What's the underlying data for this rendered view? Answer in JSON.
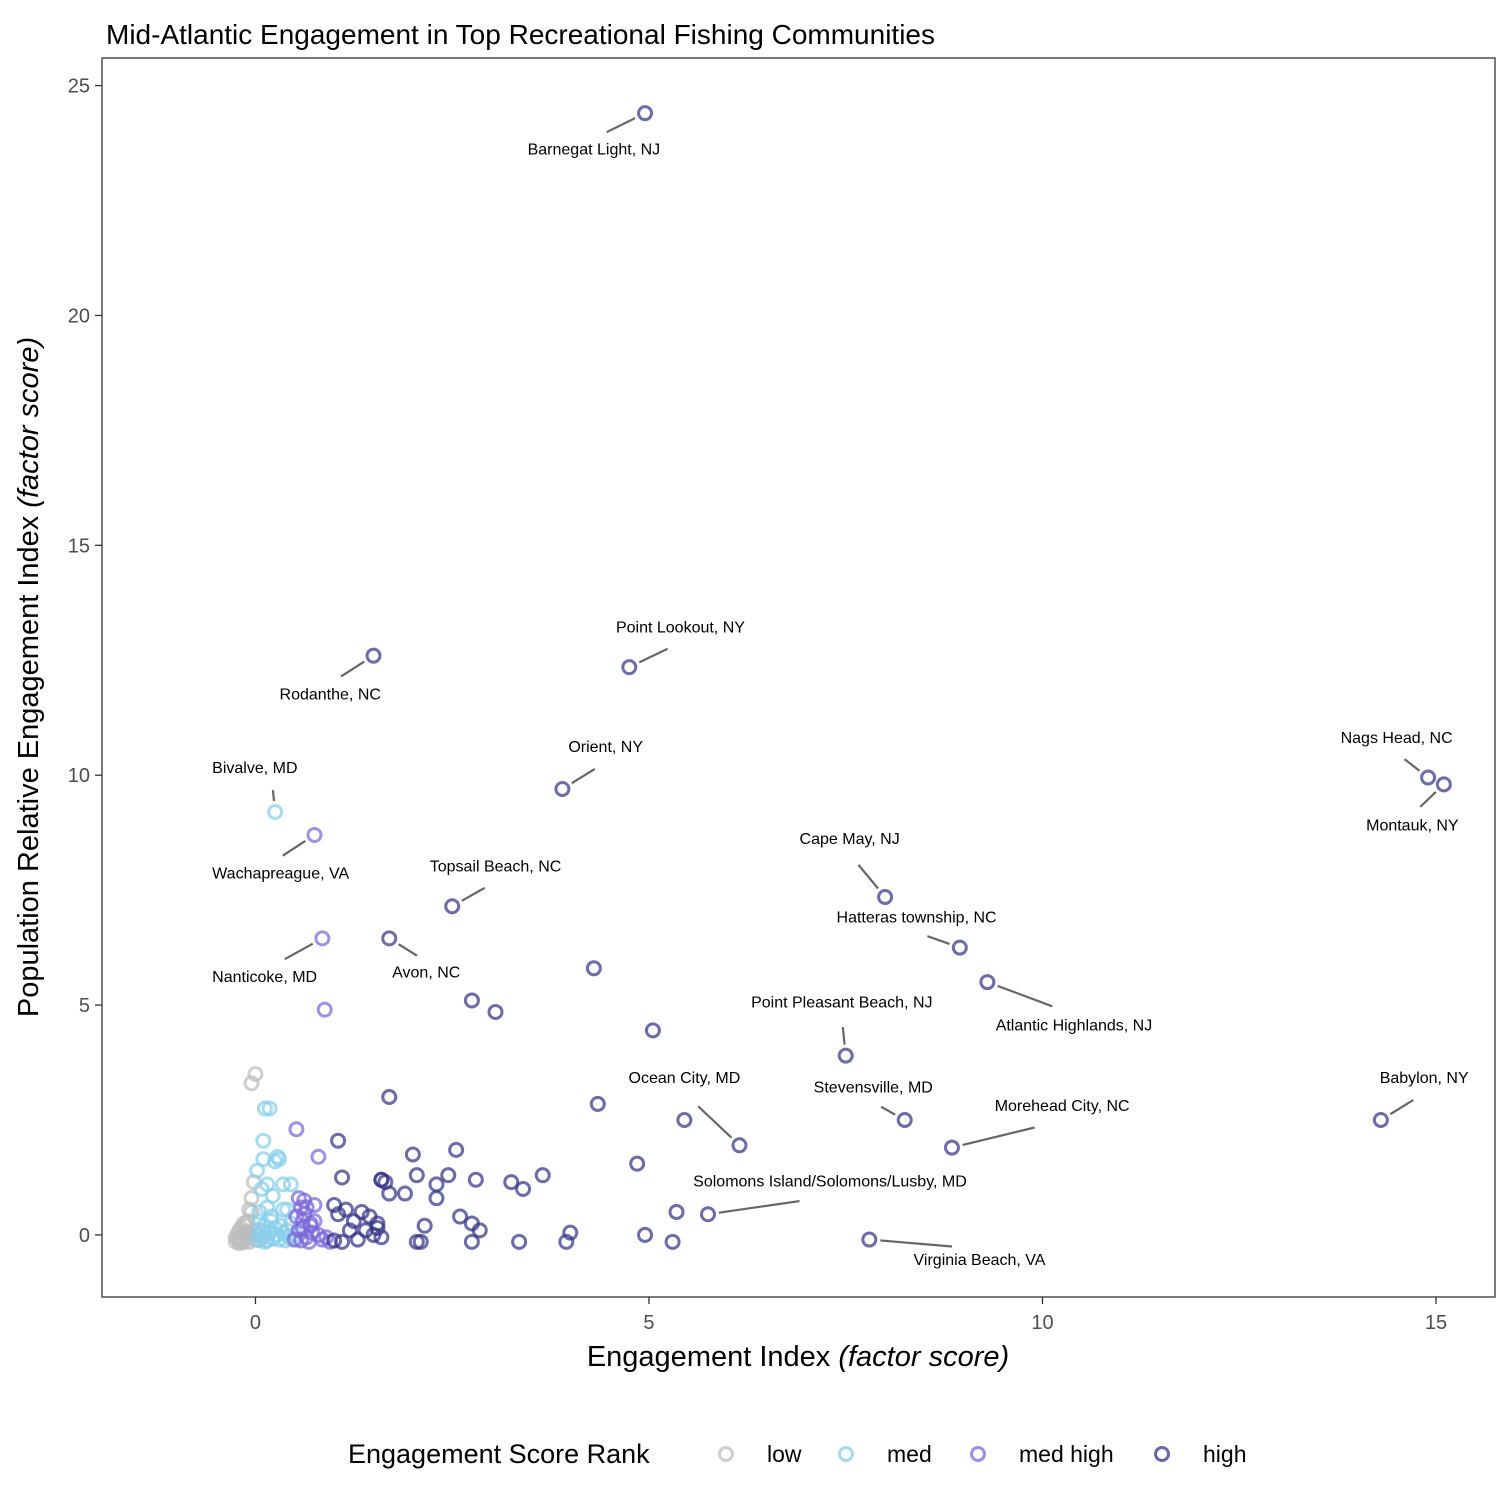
{
  "chart_data": {
    "type": "scatter",
    "title": "Mid-Atlantic Engagement in Top Recreational Fishing Communities",
    "xlabel_main": "Engagement Index ",
    "xlabel_italic": "(factor score)",
    "ylabel_main": "Population Relative Engagement Index ",
    "ylabel_italic": "(factor score)",
    "xlim": [
      -1.95,
      15.75
    ],
    "ylim": [
      -1.35,
      25.6
    ],
    "x_ticks": [
      0,
      5,
      10,
      15
    ],
    "y_ticks": [
      0,
      5,
      10,
      15,
      20,
      25
    ],
    "grid": false,
    "legend": {
      "title": "Engagement Score Rank",
      "position": "bottom",
      "entries": [
        {
          "name": "low",
          "color": "#bdbdbd"
        },
        {
          "name": "med",
          "color": "#87ceeb"
        },
        {
          "name": "med high",
          "color": "#7b68d8"
        },
        {
          "name": "high",
          "color": "#333388"
        }
      ]
    },
    "series": [
      {
        "name": "low",
        "color": "#bdbdbd",
        "points": [
          [
            -0.25,
            -0.15
          ],
          [
            -0.22,
            -0.1
          ],
          [
            -0.2,
            -0.05
          ],
          [
            -0.18,
            -0.12
          ],
          [
            -0.15,
            0.0
          ],
          [
            -0.12,
            -0.08
          ],
          [
            -0.1,
            0.05
          ],
          [
            -0.08,
            -0.15
          ],
          [
            -0.05,
            -0.02
          ],
          [
            -0.02,
            0.08
          ],
          [
            0.0,
            -0.1
          ],
          [
            0.02,
            0.0
          ],
          [
            -0.2,
            0.1
          ],
          [
            -0.15,
            0.25
          ],
          [
            -0.18,
            0.15
          ],
          [
            -0.1,
            0.3
          ],
          [
            -0.05,
            0.5
          ],
          [
            -0.12,
            0.2
          ],
          [
            -0.08,
            0.55
          ],
          [
            -0.2,
            -0.18
          ],
          [
            -0.25,
            -0.05
          ],
          [
            -0.22,
            0.05
          ],
          [
            -0.05,
            0.8
          ],
          [
            -0.02,
            1.15
          ],
          [
            -0.05,
            3.3
          ],
          [
            0.0,
            3.5
          ],
          [
            -0.15,
            -0.15
          ],
          [
            -0.1,
            -0.05
          ],
          [
            0.05,
            -0.12
          ],
          [
            0.03,
            0.12
          ],
          [
            -0.17,
            0.02
          ],
          [
            -0.13,
            -0.03
          ]
        ]
      },
      {
        "name": "med",
        "color": "#87ceeb",
        "points": [
          [
            0.02,
            -0.1
          ],
          [
            0.05,
            0.0
          ],
          [
            0.08,
            0.1
          ],
          [
            0.1,
            -0.05
          ],
          [
            0.12,
            0.2
          ],
          [
            0.15,
            -0.12
          ],
          [
            0.18,
            0.05
          ],
          [
            0.2,
            0.3
          ],
          [
            0.22,
            -0.08
          ],
          [
            0.25,
            0.15
          ],
          [
            0.28,
            0.0
          ],
          [
            0.3,
            -0.1
          ],
          [
            0.32,
            0.2
          ],
          [
            0.35,
            0.05
          ],
          [
            0.38,
            -0.12
          ],
          [
            0.4,
            0.1
          ],
          [
            0.42,
            -0.05
          ],
          [
            0.45,
            0.25
          ],
          [
            0.48,
            -0.1
          ],
          [
            0.5,
            0.0
          ],
          [
            0.05,
            0.5
          ],
          [
            0.08,
            1.0
          ],
          [
            0.15,
            0.6
          ],
          [
            0.2,
            0.4
          ],
          [
            0.02,
            1.4
          ],
          [
            0.1,
            1.65
          ],
          [
            0.15,
            1.1
          ],
          [
            0.25,
            1.6
          ],
          [
            0.3,
            1.65
          ],
          [
            0.35,
            1.1
          ],
          [
            0.1,
            2.05
          ],
          [
            0.12,
            2.75
          ],
          [
            0.18,
            2.75
          ],
          [
            0.22,
            0.85
          ],
          [
            0.35,
            0.55
          ],
          [
            0.28,
            1.7
          ],
          [
            0.45,
            1.1
          ],
          [
            0.4,
            0.55
          ],
          [
            0.05,
            0.3
          ],
          [
            0.12,
            -0.15
          ],
          [
            0.25,
            9.2
          ]
        ]
      },
      {
        "name": "med high",
        "color": "#7b68d8",
        "points": [
          [
            0.5,
            -0.1
          ],
          [
            0.55,
            0.1
          ],
          [
            0.6,
            0.3
          ],
          [
            0.65,
            -0.05
          ],
          [
            0.7,
            0.2
          ],
          [
            0.52,
            0.4
          ],
          [
            0.58,
            0.6
          ],
          [
            0.62,
            0.75
          ],
          [
            0.68,
            -0.15
          ],
          [
            0.72,
            0.05
          ],
          [
            0.75,
            0.3
          ],
          [
            0.8,
            0.0
          ],
          [
            0.85,
            -0.1
          ],
          [
            0.9,
            -0.05
          ],
          [
            0.95,
            -0.15
          ],
          [
            0.55,
            0.8
          ],
          [
            0.6,
            0.15
          ],
          [
            0.65,
            0.6
          ],
          [
            0.75,
            0.65
          ],
          [
            0.52,
            2.3
          ],
          [
            0.8,
            1.7
          ],
          [
            0.7,
            0.25
          ],
          [
            0.58,
            -0.12
          ],
          [
            0.62,
            0.45
          ],
          [
            0.75,
            8.7
          ],
          [
            0.85,
            6.45
          ],
          [
            0.88,
            4.9
          ]
        ]
      },
      {
        "name": "high",
        "color": "#333388",
        "points": [
          [
            1.0,
            0.65
          ],
          [
            1.05,
            0.45
          ],
          [
            1.1,
            -0.15
          ],
          [
            1.15,
            0.55
          ],
          [
            1.2,
            0.1
          ],
          [
            1.25,
            0.3
          ],
          [
            1.3,
            -0.1
          ],
          [
            1.35,
            0.5
          ],
          [
            1.4,
            0.1
          ],
          [
            1.45,
            0.4
          ],
          [
            1.5,
            0.0
          ],
          [
            1.55,
            0.25
          ],
          [
            1.6,
            -0.05
          ],
          [
            1.6,
            1.2
          ],
          [
            1.65,
            1.15
          ],
          [
            1.7,
            0.9
          ],
          [
            1.0,
            -0.12
          ],
          [
            1.1,
            1.25
          ],
          [
            1.05,
            2.05
          ],
          [
            1.55,
            0.15
          ],
          [
            1.6,
            1.2
          ],
          [
            1.9,
            0.9
          ],
          [
            2.0,
            1.75
          ],
          [
            2.05,
            1.3
          ],
          [
            2.05,
            -0.15
          ],
          [
            2.1,
            -0.15
          ],
          [
            2.15,
            0.2
          ],
          [
            2.3,
            1.1
          ],
          [
            2.3,
            0.8
          ],
          [
            2.45,
            1.3
          ],
          [
            2.55,
            1.85
          ],
          [
            2.6,
            0.4
          ],
          [
            2.75,
            0.25
          ],
          [
            2.75,
            -0.15
          ],
          [
            2.8,
            1.2
          ],
          [
            2.85,
            0.1
          ],
          [
            3.25,
            1.15
          ],
          [
            3.35,
            -0.15
          ],
          [
            3.4,
            1.0
          ],
          [
            3.65,
            1.3
          ],
          [
            3.95,
            -0.15
          ],
          [
            4.0,
            0.05
          ],
          [
            4.35,
            2.85
          ],
          [
            4.85,
            1.55
          ],
          [
            4.95,
            0.0
          ],
          [
            5.3,
            -0.15
          ],
          [
            5.35,
            0.5
          ],
          [
            5.45,
            2.5
          ],
          [
            2.75,
            5.1
          ],
          [
            3.05,
            4.85
          ],
          [
            4.3,
            5.8
          ],
          [
            5.05,
            4.45
          ],
          [
            1.7,
            3.0
          ],
          [
            4.95,
            24.4
          ],
          [
            4.75,
            12.35
          ],
          [
            1.5,
            12.6
          ],
          [
            3.9,
            9.7
          ],
          [
            2.5,
            7.15
          ],
          [
            1.7,
            6.45
          ],
          [
            8.0,
            7.35
          ],
          [
            8.95,
            6.25
          ],
          [
            9.3,
            5.5
          ],
          [
            7.5,
            3.9
          ],
          [
            6.15,
            1.95
          ],
          [
            8.25,
            2.5
          ],
          [
            8.85,
            1.9
          ],
          [
            14.3,
            2.5
          ],
          [
            5.75,
            0.45
          ],
          [
            7.8,
            -0.1
          ],
          [
            14.9,
            9.95
          ],
          [
            15.1,
            9.8
          ]
        ]
      }
    ],
    "annotations": [
      {
        "text": "Barnegat Light, NJ",
        "x": 4.95,
        "y": 24.4,
        "lx": 4.3,
        "ly": 23.5,
        "anchor": "middle"
      },
      {
        "text": "Point Lookout, NY",
        "x": 4.75,
        "y": 12.35,
        "lx": 5.4,
        "ly": 13.1,
        "anchor": "middle"
      },
      {
        "text": "Rodanthe, NC",
        "x": 1.5,
        "y": 12.6,
        "lx": 0.95,
        "ly": 11.65,
        "anchor": "middle"
      },
      {
        "text": "Orient, NY",
        "x": 3.9,
        "y": 9.7,
        "lx": 4.45,
        "ly": 10.5,
        "anchor": "middle"
      },
      {
        "text": "Bivalve, MD",
        "x": 0.25,
        "y": 9.2,
        "lx": -0.55,
        "ly": 10.05,
        "anchor": "start"
      },
      {
        "text": "Wachapreague, VA",
        "x": 0.75,
        "y": 8.7,
        "lx": -0.55,
        "ly": 7.75,
        "anchor": "start"
      },
      {
        "text": "Topsail Beach, NC",
        "x": 2.5,
        "y": 7.15,
        "lx": 3.05,
        "ly": 7.9,
        "anchor": "middle"
      },
      {
        "text": "Nanticoke, MD",
        "x": 0.85,
        "y": 6.45,
        "lx": -0.55,
        "ly": 5.5,
        "anchor": "start"
      },
      {
        "text": "Avon, NC",
        "x": 1.7,
        "y": 6.45,
        "lx": 2.17,
        "ly": 5.6,
        "anchor": "middle"
      },
      {
        "text": "Cape May, NJ",
        "x": 8.0,
        "y": 7.35,
        "lx": 7.55,
        "ly": 8.5,
        "anchor": "middle"
      },
      {
        "text": "Hatteras township, NC",
        "x": 8.95,
        "y": 6.25,
        "lx": 8.4,
        "ly": 6.8,
        "anchor": "middle"
      },
      {
        "text": "Point Pleasant Beach, NJ",
        "x": 7.5,
        "y": 3.9,
        "lx": 7.45,
        "ly": 4.95,
        "anchor": "middle"
      },
      {
        "text": "Atlantic Highlands, NJ",
        "x": 9.3,
        "y": 5.5,
        "lx": 10.4,
        "ly": 4.45,
        "anchor": "middle"
      },
      {
        "text": "Nags Head, NC",
        "x": 14.9,
        "y": 9.95,
        "lx": 14.5,
        "ly": 10.7,
        "anchor": "middle"
      },
      {
        "text": "Montauk, NY",
        "x": 15.1,
        "y": 9.8,
        "lx": 14.7,
        "ly": 8.8,
        "anchor": "middle"
      },
      {
        "text": "Ocean City, MD",
        "x": 6.15,
        "y": 1.95,
        "lx": 5.45,
        "ly": 3.3,
        "anchor": "middle"
      },
      {
        "text": "Stevensville, MD",
        "x": 8.25,
        "y": 2.5,
        "lx": 7.85,
        "ly": 3.1,
        "anchor": "middle"
      },
      {
        "text": "Morehead City, NC",
        "x": 8.85,
        "y": 1.9,
        "lx": 10.25,
        "ly": 2.7,
        "anchor": "middle"
      },
      {
        "text": "Babylon, NY",
        "x": 14.3,
        "y": 2.5,
        "lx": 14.85,
        "ly": 3.3,
        "anchor": "middle"
      },
      {
        "text": "Solomons Island/Solomons/Lusby, MD",
        "x": 5.75,
        "y": 0.45,
        "lx": 7.3,
        "ly": 1.05,
        "anchor": "middle"
      },
      {
        "text": "Virginia Beach, VA",
        "x": 7.8,
        "y": -0.1,
        "lx": 9.2,
        "ly": -0.65,
        "anchor": "middle"
      }
    ]
  }
}
